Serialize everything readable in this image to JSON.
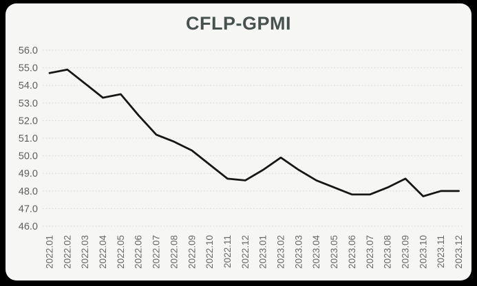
{
  "window": {
    "background_color": "#000000",
    "card_background_color": "#f6f6f5"
  },
  "chart_data": {
    "type": "line",
    "title": "CFLP-GPMI",
    "series_name": "CFLP-GPMI",
    "categories": [
      "2022.01",
      "2022.02",
      "2022.03",
      "2022.04",
      "2022.05",
      "2022.06",
      "2022.07",
      "2022.08",
      "2022.09",
      "2022.10",
      "2022.11",
      "2022.12",
      "2023.01",
      "2023.02",
      "2023.03",
      "2023.04",
      "2023.05",
      "2023.06",
      "2023.07",
      "2023.08",
      "2023.09",
      "2023.10",
      "2023.11",
      "2023.12"
    ],
    "values": [
      54.7,
      54.9,
      54.1,
      53.3,
      53.5,
      52.3,
      51.2,
      50.8,
      50.3,
      49.5,
      48.7,
      48.6,
      49.2,
      49.9,
      49.2,
      48.6,
      48.2,
      47.8,
      47.8,
      48.2,
      48.7,
      47.7,
      48.0,
      48.0
    ],
    "xlabel": "",
    "ylabel": "",
    "ylim": [
      46.0,
      56.0
    ],
    "ytick_step": 1.0,
    "ytick_labels": [
      "56.0",
      "55.0",
      "54.0",
      "53.0",
      "52.0",
      "51.0",
      "50.0",
      "49.0",
      "48.0",
      "47.0",
      "46.0"
    ],
    "xtick_rotation_degrees": 90,
    "grid": "horizontal-dashed-only",
    "legend_position": "none",
    "line_color": "#161616",
    "line_width": 2.8,
    "gridline_color": "#d8dfdf",
    "title_color": "#475150",
    "ytick_color": "#5e5e5e",
    "xtick_color": "#686868"
  }
}
